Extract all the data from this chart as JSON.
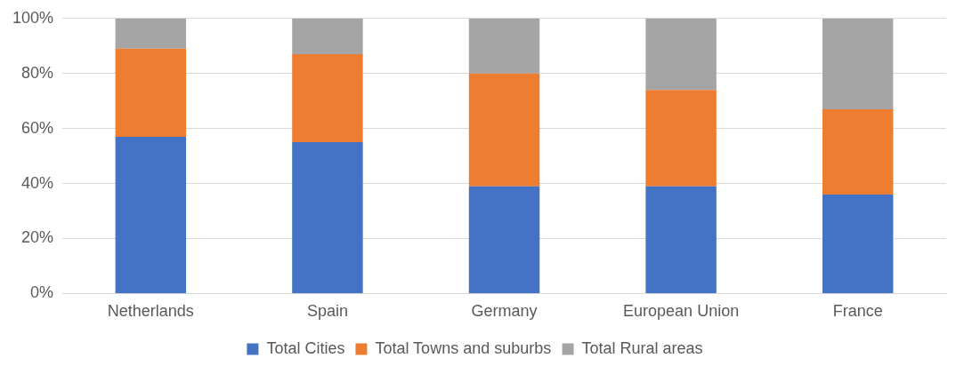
{
  "chart_data": {
    "type": "bar",
    "stacked": true,
    "categories": [
      "Netherlands",
      "Spain",
      "Germany",
      "European Union",
      "France"
    ],
    "series": [
      {
        "name": "Total Cities",
        "color": "#4472c4",
        "values": [
          57,
          55,
          39,
          39,
          36
        ]
      },
      {
        "name": "Total Towns and suburbs",
        "color": "#ed7d31",
        "values": [
          32,
          32,
          41,
          35,
          31
        ]
      },
      {
        "name": "Total Rural areas",
        "color": "#a5a5a5",
        "values": [
          11,
          13,
          20,
          26,
          33
        ]
      }
    ],
    "ylim": [
      0,
      100
    ],
    "yticks": [
      {
        "value": 0,
        "label": "0%"
      },
      {
        "value": 20,
        "label": "20%"
      },
      {
        "value": 40,
        "label": "40%"
      },
      {
        "value": 60,
        "label": "60%"
      },
      {
        "value": 80,
        "label": "80%"
      },
      {
        "value": 100,
        "label": "100%"
      }
    ],
    "grid": "y",
    "legend": "bottom"
  }
}
